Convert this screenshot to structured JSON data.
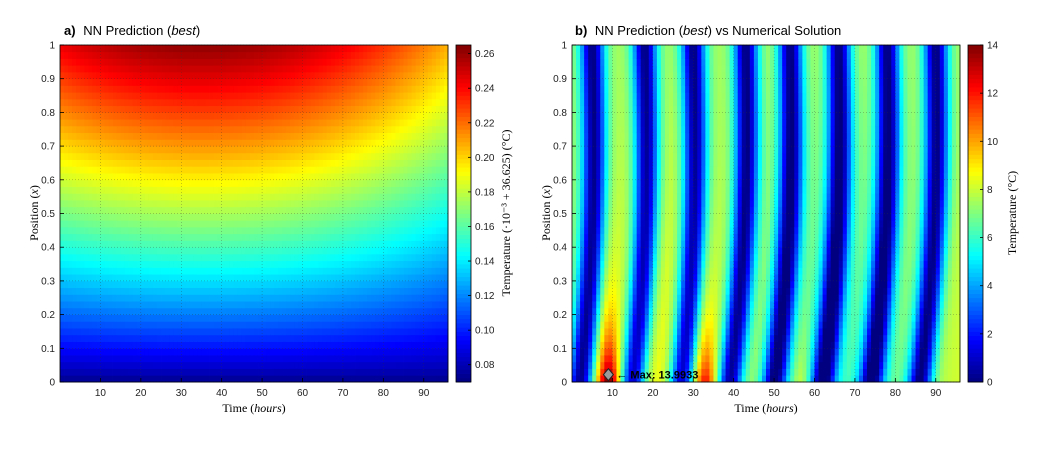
{
  "chart_data": [
    {
      "type": "heatmap",
      "panel_letter": "a)",
      "title_prefix": "NN Prediction (",
      "title_italic": "best",
      "title_suffix": ")",
      "xlabel": "Time (",
      "xlabel_italic": "hours",
      "xlabel_suffix": ")",
      "ylabel": "Position (",
      "ylabel_italic": "x",
      "ylabel_suffix": ")",
      "colorbar_label": "Temperature (·10⁻³ + 36.625) (°C)",
      "xlim": [
        0,
        96
      ],
      "ylim": [
        0,
        1
      ],
      "xticks": [
        10,
        20,
        30,
        40,
        50,
        60,
        70,
        80,
        90
      ],
      "yticks": [
        0,
        0.1,
        0.2,
        0.3,
        0.4,
        0.5,
        0.6,
        0.7,
        0.8,
        0.9,
        1
      ],
      "clim": [
        0.07,
        0.265
      ],
      "cticks": [
        0.08,
        0.1,
        0.12,
        0.14,
        0.16,
        0.18,
        0.2,
        0.22,
        0.24,
        0.26
      ],
      "ctick_labels": [
        "0.08",
        "0.10",
        "0.12",
        "0.14",
        "0.16",
        "0.18",
        "0.20",
        "0.22",
        "0.24",
        "0.26"
      ],
      "colormap": "jet",
      "grid": true,
      "model": "dome",
      "z_bottom": 0.072,
      "z_peak": 0.262,
      "peak_time": 35,
      "peak_position": 0.92
    },
    {
      "type": "heatmap",
      "panel_letter": "b)",
      "title_prefix": "NN Prediction (",
      "title_italic": "best",
      "title_suffix": ") vs Numerical Solution",
      "xlabel": "Time (",
      "xlabel_italic": "hours",
      "xlabel_suffix": ")",
      "ylabel": "Position (",
      "ylabel_italic": "x",
      "ylabel_suffix": ")",
      "colorbar_label": "Temperature (°C)",
      "xlim": [
        0,
        96
      ],
      "ylim": [
        0,
        1
      ],
      "xticks": [
        10,
        20,
        30,
        40,
        50,
        60,
        70,
        80,
        90
      ],
      "yticks": [
        0,
        0.1,
        0.2,
        0.3,
        0.4,
        0.5,
        0.6,
        0.7,
        0.8,
        0.9,
        1
      ],
      "clim": [
        0,
        14
      ],
      "cticks": [
        0,
        2,
        4,
        6,
        8,
        10,
        12,
        14
      ],
      "ctick_labels": [
        "0",
        "2",
        "4",
        "6",
        "8",
        "10",
        "12",
        "14"
      ],
      "colormap": "jet",
      "grid": true,
      "model": "waves",
      "minima_times_at_top": [
        5,
        18,
        30,
        43,
        54,
        66,
        78,
        90
      ],
      "minima_times_at_bottom": [
        2,
        15,
        27,
        39,
        50,
        62,
        74,
        86
      ],
      "hot_spots": [
        {
          "time": 9,
          "value": 13.9933
        },
        {
          "time": 33,
          "value": 11.5
        },
        {
          "time": 57,
          "value": 9.0
        },
        {
          "time": 81,
          "value": 7.5
        }
      ],
      "annotation": {
        "marker": "diamond",
        "text": "← Max: 13.9933",
        "time": 9,
        "position": 0.01,
        "value": 13.9933
      }
    }
  ]
}
